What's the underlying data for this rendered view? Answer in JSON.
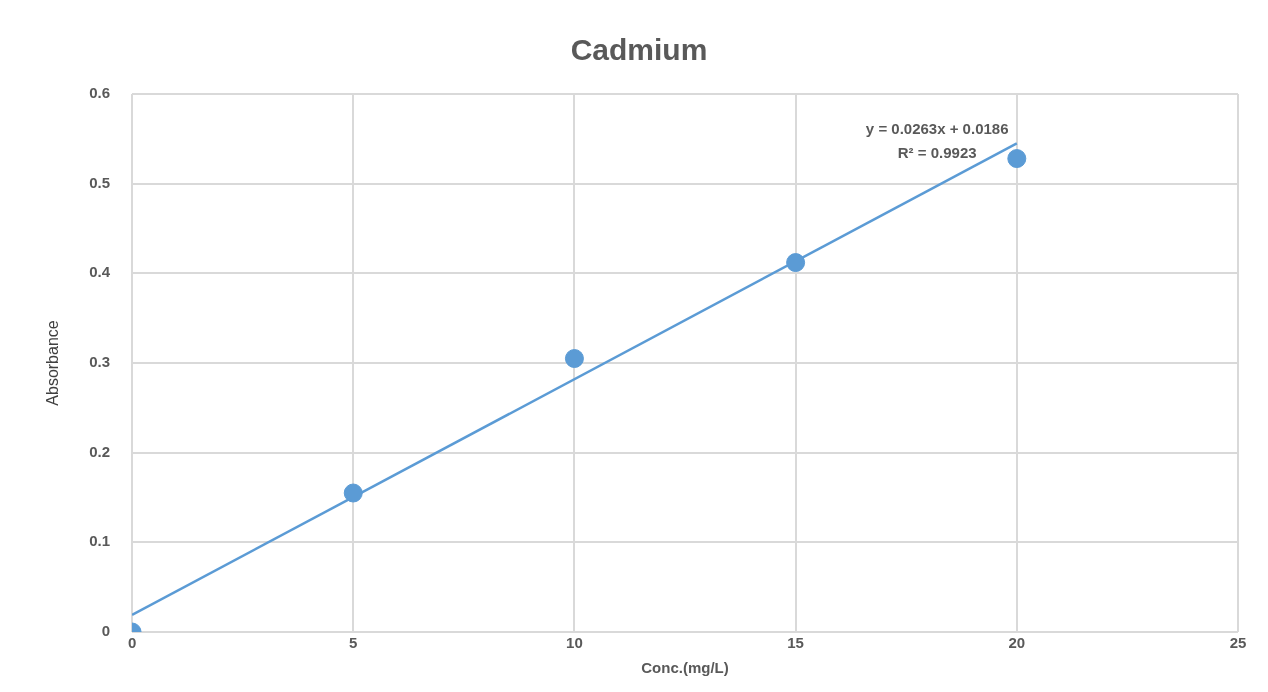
{
  "chart_data": {
    "type": "scatter",
    "title": "Cadmium",
    "xlabel": "Conc.(mg/L)",
    "ylabel": "Absorbance",
    "series": [
      {
        "color": "#5b9bd5",
        "x": [
          0,
          5,
          10,
          15,
          20
        ],
        "values": [
          0,
          0.155,
          0.305,
          0.412,
          0.528
        ]
      },
      {
        "type": "line",
        "marker": "none",
        "color": "#5b9bd5",
        "x": [
          0,
          20
        ],
        "values": [
          0.019,
          0.545
        ]
      }
    ],
    "annotations": [
      "y = 0.0263x + 0.0186",
      "R² = 0.9923"
    ],
    "xlim": [
      0,
      25
    ],
    "xticks": [
      0,
      5,
      10,
      15,
      20,
      25
    ],
    "ylim": [
      0,
      0.6
    ],
    "yticks": [
      0,
      0.1,
      0.2,
      0.3,
      0.4,
      0.5,
      0.6
    ],
    "grid": true,
    "marker": "circle"
  }
}
